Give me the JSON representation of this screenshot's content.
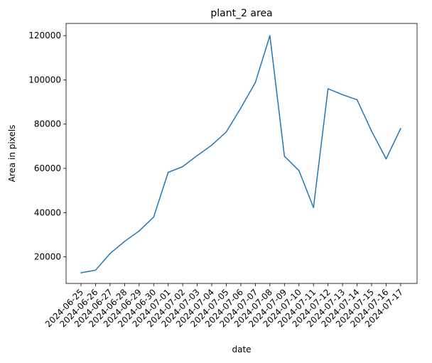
{
  "chart_data": {
    "type": "line",
    "title": "plant_2 area",
    "xlabel": "date",
    "ylabel": "Area in pixels",
    "x": [
      "2024-06-25",
      "2024-06-26",
      "2024-06-27",
      "2024-06-28",
      "2024-06-29",
      "2024-06-30",
      "2024-07-01",
      "2024-07-02",
      "2024-07-03",
      "2024-07-04",
      "2024-07-05",
      "2024-07-06",
      "2024-07-07",
      "2024-07-08",
      "2024-07-09",
      "2024-07-10",
      "2024-07-11",
      "2024-07-12",
      "2024-07-13",
      "2024-07-14",
      "2024-07-15",
      "2024-07-16",
      "2024-07-17"
    ],
    "series": [
      {
        "color": "#1f77b4",
        "values": [
          12800,
          14000,
          21500,
          27000,
          31700,
          38000,
          58200,
          60800,
          65800,
          70500,
          76500,
          87300,
          98800,
          120000,
          65500,
          59000,
          42300,
          96000,
          93300,
          91000,
          76800,
          64300,
          78000
        ]
      }
    ],
    "ylim": [
      8000,
      125500
    ],
    "yticks": [
      20000,
      40000,
      60000,
      80000,
      100000,
      120000
    ],
    "ytick_labels": [
      "20000",
      "40000",
      "60000",
      "80000",
      "100000",
      "120000"
    ],
    "grid": false,
    "legend": "none"
  }
}
